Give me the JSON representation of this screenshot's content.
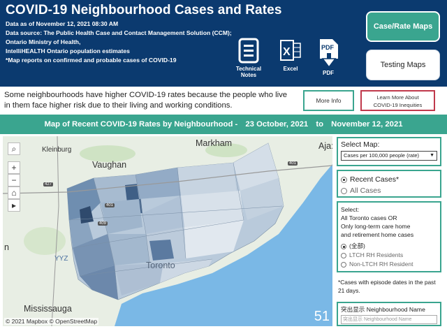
{
  "header": {
    "title": "COVID-19 Neighbourhood Cases and Rates",
    "data_as_of": "Data as of November 12, 2021 08:30 AM",
    "source_line1": "Data source: The Public Health Case and Contact Management Solution (CCM);",
    "source_line2": "Ontario Ministry of Health,",
    "source_line3": "IntelliHEALTH Ontario population estimates",
    "source_line4": "*Map reports on confirmed and probable cases of COVID-19",
    "downloads": [
      {
        "label": "Technical Notes",
        "icon": "document-icon"
      },
      {
        "label": "Excel",
        "icon": "excel-icon"
      },
      {
        "label": "PDF",
        "icon": "pdf-download-icon"
      }
    ],
    "nav_active": "Case/Rate Maps",
    "nav_other": "Testing Maps"
  },
  "intro": {
    "text": "Some neighbourhoods have higher COVID-19 rates because the people who live in them face higher risk due to their living and working conditions.",
    "more_info": "More Info",
    "learn_more_line1": "Learn More About",
    "learn_more_line2": "COVID-19 Inequities"
  },
  "map_banner": {
    "prefix": "Map of Recent COVID-19 Rates by Neighbourhood -",
    "from_date": "23 October, 2021",
    "to_word": "to",
    "to_date": "November 12, 2021"
  },
  "map": {
    "places": [
      "Kleinburg",
      "Vaughan",
      "Markham",
      "Ajax",
      "Toronto",
      "Mississauga",
      "YYZ"
    ],
    "ajax_visible": "Aja:",
    "edge_label": "n",
    "highways": [
      "427",
      "401",
      "409",
      "401"
    ],
    "attribution": "© 2021 Mapbox © OpenStreetMap",
    "overlay_number": "51",
    "controls": [
      {
        "name": "search",
        "glyph": "⌕"
      },
      {
        "name": "zoom-in",
        "glyph": "+"
      },
      {
        "name": "zoom-out",
        "glyph": "−"
      },
      {
        "name": "home",
        "glyph": "⌂"
      },
      {
        "name": "play",
        "glyph": "▸"
      }
    ]
  },
  "select_map": {
    "label": "Select Map:",
    "value": "Cases per 100,000 people (rate)"
  },
  "case_type": {
    "options": [
      "Recent Cases*",
      "All Cases"
    ],
    "selected": 0
  },
  "ltc": {
    "line1": "Select:",
    "line2": "All Toronto cases OR",
    "line3": "Only long-term care home",
    "line4": "and retirement home cases",
    "options": [
      "(全部)",
      "LTCH RH Residents",
      "Non-LTCH RH Resident"
    ],
    "selected": 0
  },
  "note": "*Cases with episode dates in the past 21 days.",
  "search": {
    "label": "突出显示 Neighbourhood Name",
    "placeholder": "突出显示 Neighbourhood Name"
  },
  "colors": {
    "header_bg": "#0b3a6f",
    "accent": "#3aa58f",
    "learn_border": "#c0394b",
    "water": "#7ab8e6"
  }
}
